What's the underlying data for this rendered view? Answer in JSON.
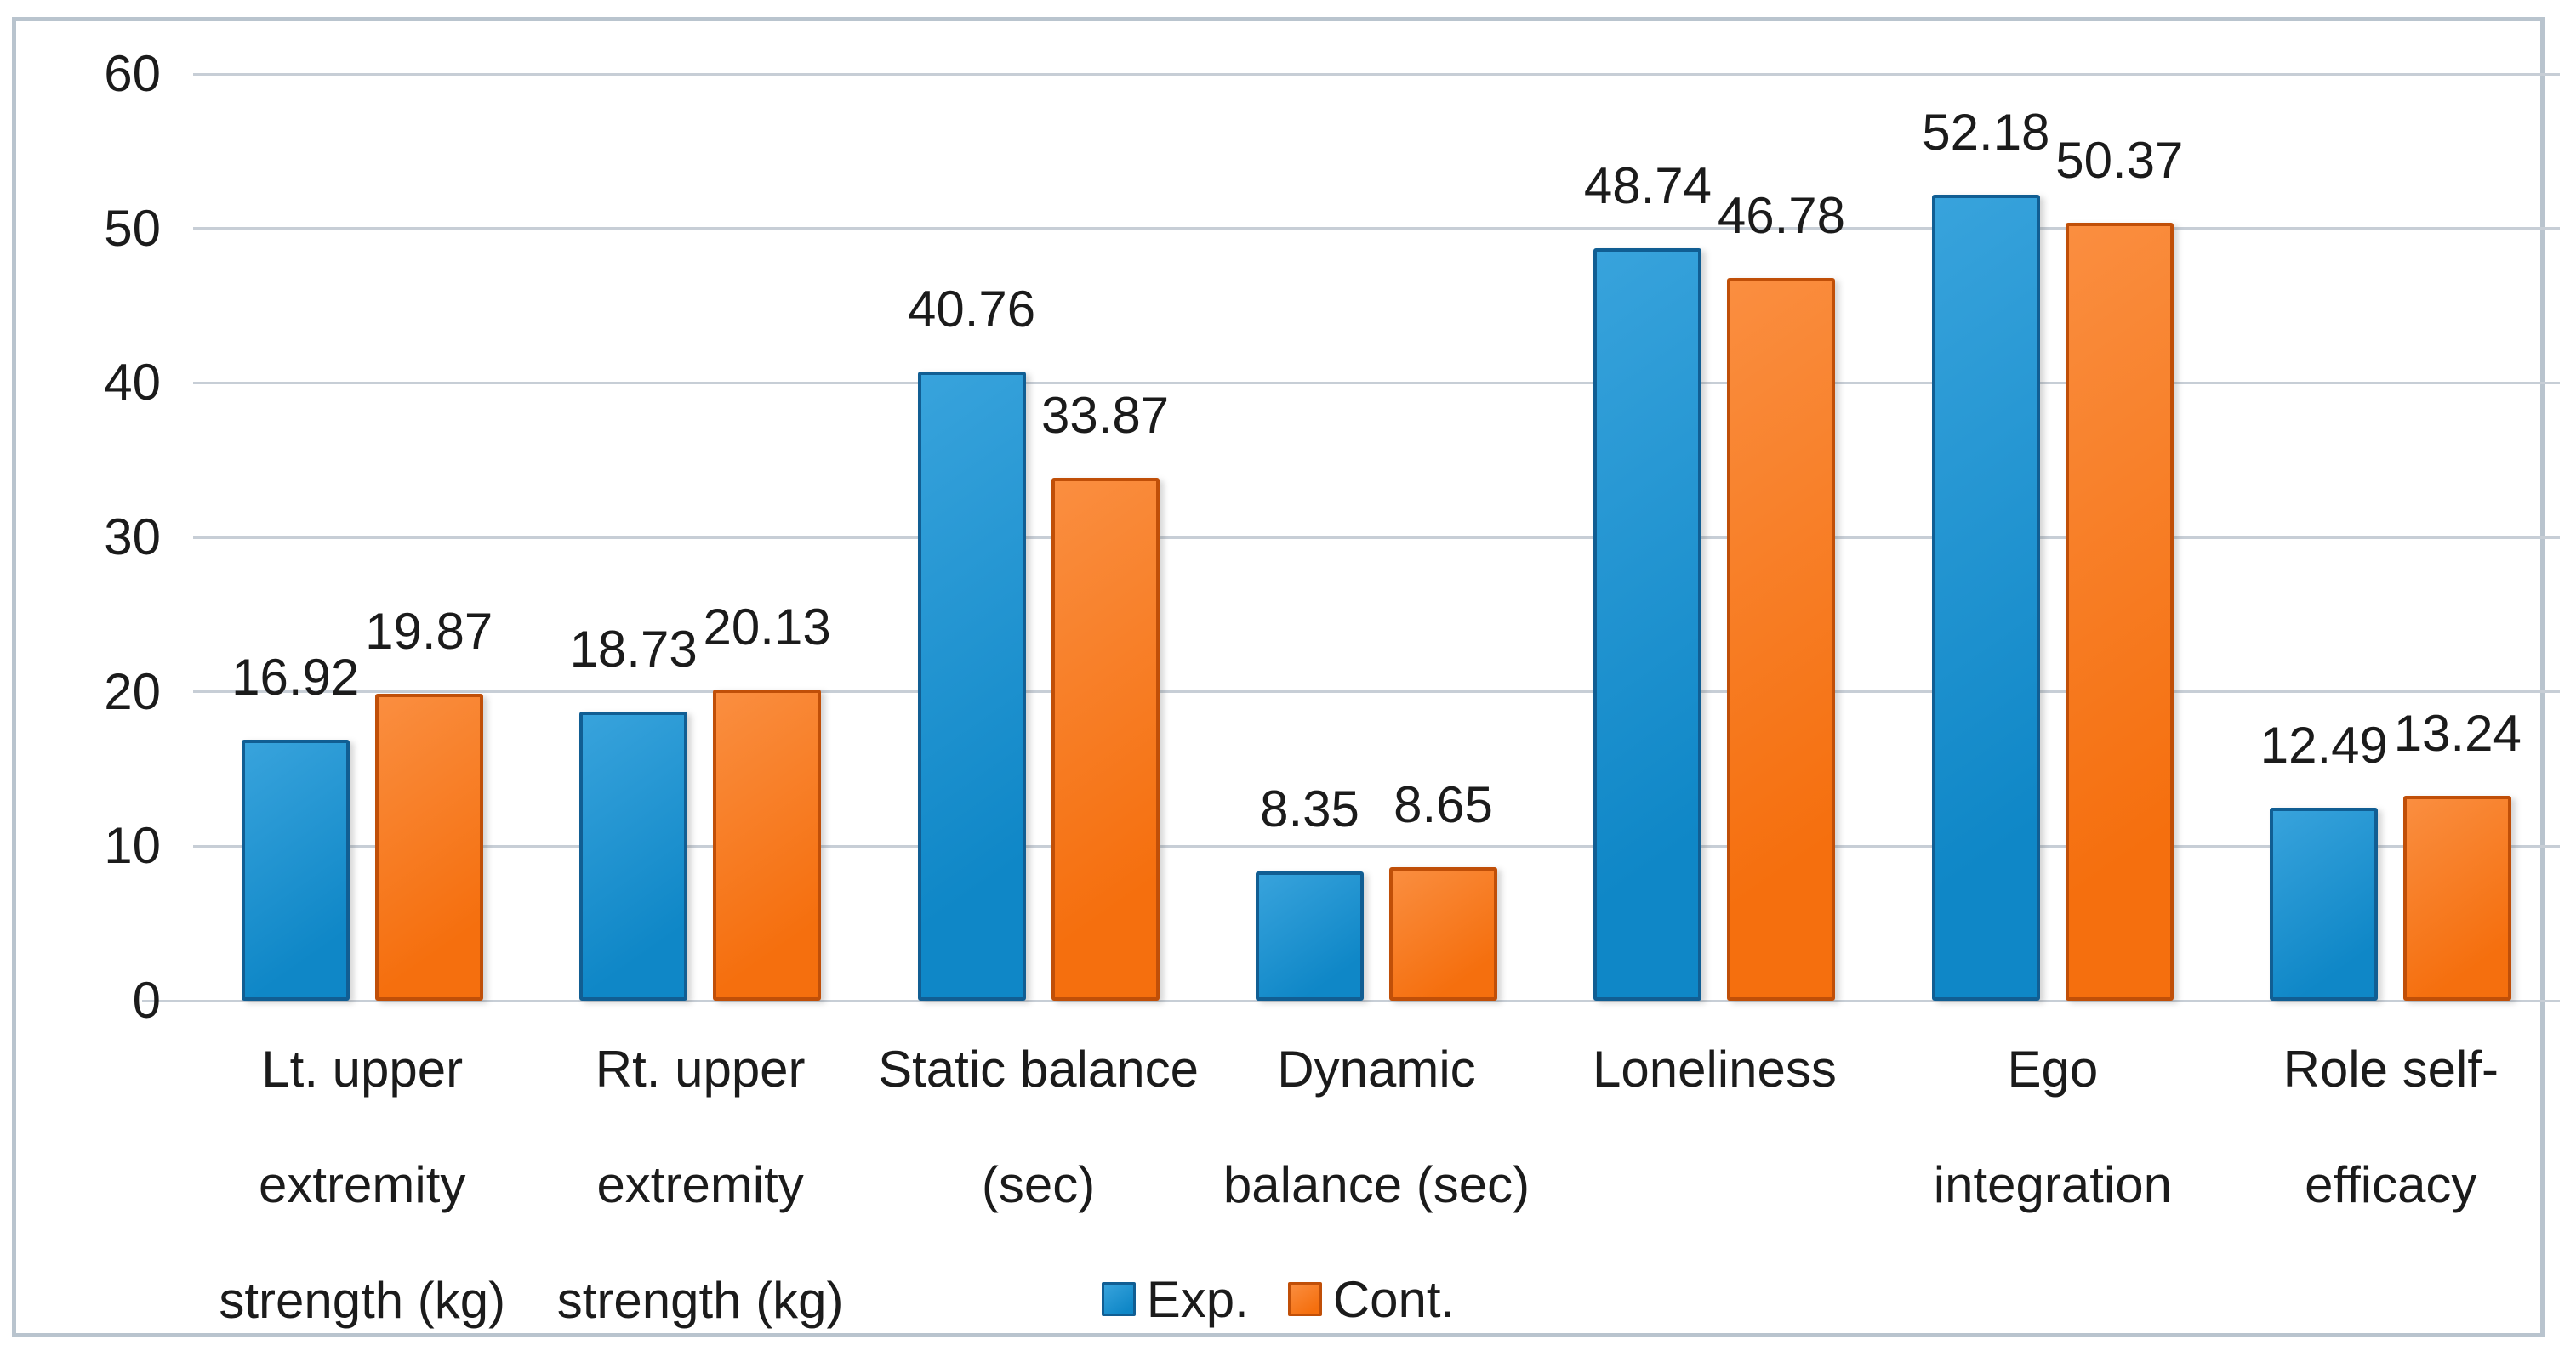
{
  "figure": {
    "background": "#ffffff",
    "frame_border_color": "#b9c4ce"
  },
  "chart_data": {
    "type": "bar",
    "title": "",
    "xlabel": "",
    "ylabel": "",
    "categories": [
      "Lt. upper extremity strength (kg)",
      "Rt. upper extremity strength (kg)",
      "Static balance (sec)",
      "Dynamic balance (sec)",
      "Loneliness",
      "Ego integration",
      "Role self-efficacy"
    ],
    "category_lines": [
      [
        "Lt. upper",
        "extremity",
        "strength (kg)"
      ],
      [
        "Rt. upper",
        "extremity",
        "strength (kg)"
      ],
      [
        "Static balance",
        "(sec)"
      ],
      [
        "Dynamic",
        "balance (sec)"
      ],
      [
        "Loneliness"
      ],
      [
        "Ego",
        "integration"
      ],
      [
        "Role self-",
        "efficacy"
      ]
    ],
    "series": [
      {
        "name": "Exp.",
        "values": [
          16.92,
          18.73,
          40.76,
          8.35,
          48.74,
          52.18,
          12.49
        ],
        "fill_light": "#38a3dc",
        "fill_dark": "#0f87c7",
        "border_color": "#115e93"
      },
      {
        "name": "Cont.",
        "values": [
          19.87,
          20.13,
          33.87,
          8.65,
          46.78,
          50.37,
          13.24
        ],
        "fill_light": "#fa8e40",
        "fill_dark": "#f56f0e",
        "border_color": "#c04f08"
      }
    ],
    "value_label_decimals": 2,
    "y_ticks": [
      0,
      10,
      20,
      30,
      40,
      50,
      60
    ],
    "ylim": [
      0,
      60
    ],
    "grid": true,
    "gridline_color": "#c7ced6",
    "text_color": "#1b1b1b",
    "legend_position": "bottom"
  }
}
